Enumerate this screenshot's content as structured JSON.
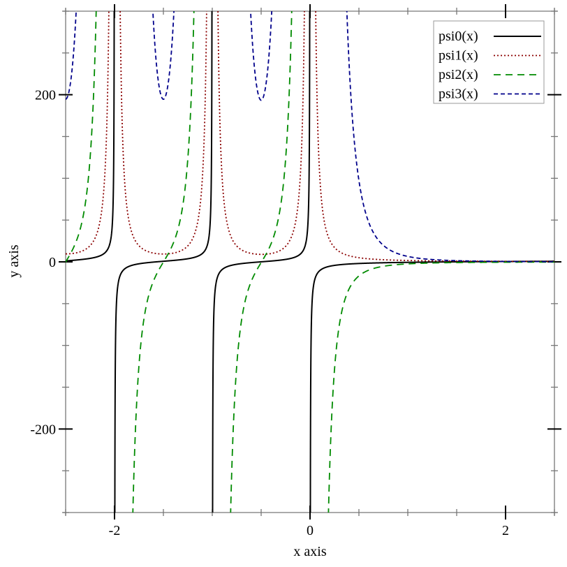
{
  "chart_data": {
    "type": "line",
    "title": "",
    "xlabel": "x axis",
    "ylabel": "y axis",
    "xlim": [
      -2.5,
      2.5
    ],
    "ylim": [
      -300,
      300
    ],
    "x_ticks_major": [
      -2,
      0,
      2
    ],
    "x_tick_labels": [
      "-2",
      "0",
      "2"
    ],
    "x_ticks_minor_step": 0.5,
    "y_ticks_major": [
      -200,
      0,
      200
    ],
    "y_tick_labels": [
      "-200",
      "0",
      "200"
    ],
    "y_ticks_minor_step": 50,
    "grid": false,
    "legend_position": "top-right",
    "series": [
      {
        "name": "psi0(x)",
        "order": 0,
        "color": "#000000",
        "style": "solid"
      },
      {
        "name": "psi1(x)",
        "order": 1,
        "color": "#8b0000",
        "style": "dotted"
      },
      {
        "name": "psi2(x)",
        "order": 2,
        "color": "#008b00",
        "style": "long-dash"
      },
      {
        "name": "psi3(x)",
        "order": 3,
        "color": "#00008b",
        "style": "short-dash"
      }
    ]
  }
}
